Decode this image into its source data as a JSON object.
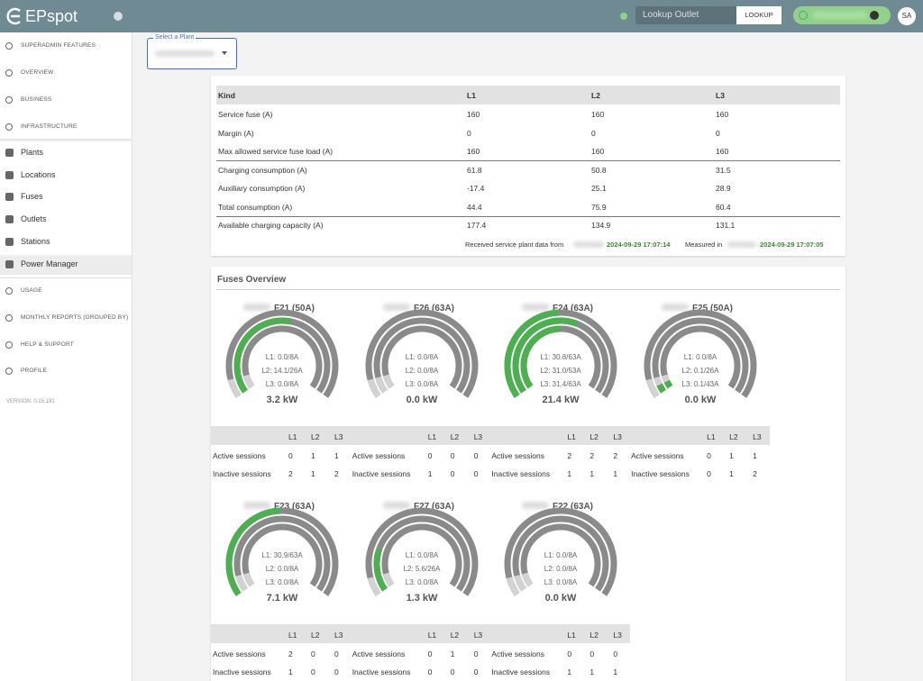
{
  "header": {
    "logo": "EPspot",
    "lookup_placeholder": "Lookup Outlet",
    "lookup_button": "LOOKUP",
    "avatar": "SA"
  },
  "sidebar": {
    "top": [
      "SUPERADMIN FEATURES",
      "OVERVIEW",
      "BUSINESS",
      "INFRASTRUCTURE"
    ],
    "infrastructure": [
      "Plants",
      "Locations",
      "Fuses",
      "Outlets",
      "Stations",
      "Power Manager"
    ],
    "bottom": [
      "USAGE",
      "MONTHLY REPORTS (GROUPED BY)",
      "HELP & SUPPORT",
      "PROFILE"
    ],
    "version": "VERSION: 0.15.191"
  },
  "plant_select": {
    "label": "Select a Plant"
  },
  "table": {
    "header": [
      "Kind",
      "L1",
      "L2",
      "L3"
    ],
    "rows": [
      [
        "Service fuse (A)",
        160,
        160,
        160
      ],
      [
        "Margin (A)",
        0,
        0,
        0
      ],
      [
        "Max allowed service fuse load (A)",
        160,
        160,
        160
      ],
      [
        "Charging consumption (A)",
        61.8,
        50.8,
        31.5
      ],
      [
        "Auxiliary consumption (A)",
        -17.4,
        25.1,
        28.9
      ],
      [
        "Total consumption (A)",
        44.4,
        75.9,
        60.4
      ],
      [
        "Available charging capacity (A)",
        177.4,
        134.9,
        131.1
      ]
    ]
  },
  "status": {
    "received_label": "Received service plant data from",
    "received_time": "2024-09-29 17:07:14",
    "measured_label": "Measured in",
    "measured_time": "2024-09-29 17:07:05"
  },
  "fuses_title": "Fuses Overview",
  "fuses": [
    {
      "name": "F21 (50A)",
      "lines": [
        "L1: 0.0/8A",
        "L2: 14.1/26A",
        "L3: 0.0/8A"
      ],
      "power": "3.2 kW",
      "sessions": {
        "header": [
          "L1",
          "L2",
          "L3"
        ],
        "rows": [
          {
            "label": "Active sessions",
            "values": [
              0,
              1,
              1
            ]
          },
          {
            "label": "Inactive sessions",
            "values": [
              2,
              1,
              2
            ]
          }
        ]
      }
    },
    {
      "name": "F26 (63A)",
      "lines": [
        "L1: 0.0/8A",
        "L2: 0.0/8A",
        "L3: 0.0/8A"
      ],
      "power": "0.0 kW",
      "sessions": {
        "header": [
          "L1",
          "L2",
          "L3"
        ],
        "rows": [
          {
            "label": "Active sessions",
            "values": [
              0,
              0,
              0
            ]
          },
          {
            "label": "Inactive sessions",
            "values": [
              1,
              0,
              0
            ]
          }
        ]
      }
    },
    {
      "name": "F24 (63A)",
      "lines": [
        "L1: 30.8/63A",
        "L2: 31.0/53A",
        "L3: 31.4/63A"
      ],
      "power": "21.4 kW",
      "sessions": {
        "header": [
          "L1",
          "L2",
          "L3"
        ],
        "rows": [
          {
            "label": "Active sessions",
            "values": [
              2,
              2,
              2
            ]
          },
          {
            "label": "Inactive sessions",
            "values": [
              1,
              1,
              1
            ]
          }
        ]
      }
    },
    {
      "name": "F25 (50A)",
      "lines": [
        "L1: 0.0/8A",
        "L2: 0.1/26A",
        "L3: 0.1/43A"
      ],
      "power": "0.0 kW",
      "sessions": {
        "header": [
          "L1",
          "L2",
          "L3"
        ],
        "rows": [
          {
            "label": "Active sessions",
            "values": [
              0,
              1,
              1
            ]
          },
          {
            "label": "Inactive sessions",
            "values": [
              0,
              1,
              2
            ]
          }
        ]
      }
    },
    {
      "name": "F23 (63A)",
      "lines": [
        "L1: 30.9/63A",
        "L2: 0.0/8A",
        "L3: 0.0/8A"
      ],
      "power": "7.1 kW",
      "sessions": {
        "header": [
          "L1",
          "L2",
          "L3"
        ],
        "rows": [
          {
            "label": "Active sessions",
            "values": [
              2,
              0,
              0
            ]
          },
          {
            "label": "Inactive sessions",
            "values": [
              1,
              0,
              0
            ]
          }
        ]
      }
    },
    {
      "name": "F27 (63A)",
      "lines": [
        "L1: 0.0/8A",
        "L2: 5.6/26A",
        "L3: 0.0/8A"
      ],
      "power": "1.3 kW",
      "sessions": {
        "header": [
          "L1",
          "L2",
          "L3"
        ],
        "rows": [
          {
            "label": "Active sessions",
            "values": [
              0,
              1,
              0
            ]
          },
          {
            "label": "Inactive sessions",
            "values": [
              0,
              0,
              0
            ]
          }
        ]
      }
    },
    {
      "name": "F22 (63A)",
      "lines": [
        "L1: 0.0/8A",
        "L2: 0.0/8A",
        "L3: 0.0/8A"
      ],
      "power": "0.0 kW",
      "sessions": {
        "header": [
          "L1",
          "L2",
          "L3"
        ],
        "rows": [
          {
            "label": "Active sessions",
            "values": [
              0,
              0,
              0
            ]
          },
          {
            "label": "Inactive sessions",
            "values": [
              1,
              1,
              1
            ]
          }
        ]
      }
    }
  ]
}
